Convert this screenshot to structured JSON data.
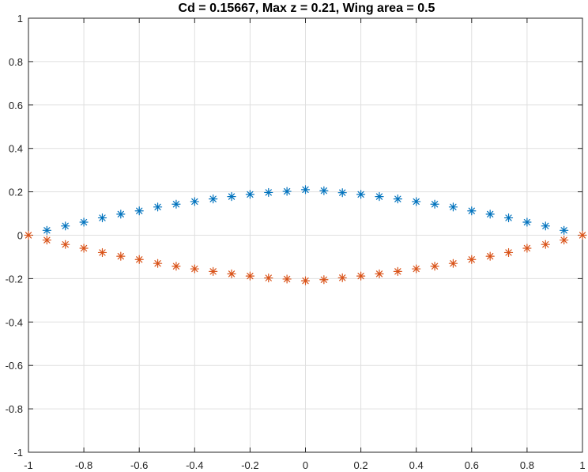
{
  "chart_data": {
    "type": "scatter",
    "title": "Cd = 0.15667, Max z = 0.21, Wing area = 0.5",
    "xlabel": "",
    "ylabel": "",
    "xlim": [
      -1,
      1
    ],
    "ylim": [
      -1,
      1
    ],
    "xticks": [
      "-1",
      "-0.8",
      "-0.6",
      "-0.4",
      "-0.2",
      "0",
      "0.2",
      "0.4",
      "0.6",
      "0.8",
      "1"
    ],
    "yticks": [
      "1",
      "0.8",
      "0.6",
      "0.4",
      "0.2",
      "0",
      "-0.2",
      "-0.4",
      "-0.6",
      "-0.8",
      "-1"
    ],
    "grid": true,
    "marker": "asterisk",
    "series": [
      {
        "color": "#0072BD",
        "points": [
          [
            -0.9333,
            0.0225
          ],
          [
            -0.8667,
            0.0425
          ],
          [
            -0.8,
            0.06
          ],
          [
            -0.7333,
            0.08
          ],
          [
            -0.6667,
            0.097
          ],
          [
            -0.6,
            0.112
          ],
          [
            -0.5333,
            0.13
          ],
          [
            -0.4667,
            0.143
          ],
          [
            -0.4,
            0.155
          ],
          [
            -0.3333,
            0.167
          ],
          [
            -0.2667,
            0.178
          ],
          [
            -0.2,
            0.188
          ],
          [
            -0.1333,
            0.197
          ],
          [
            -0.0667,
            0.202
          ],
          [
            0.0,
            0.21
          ],
          [
            0.0667,
            0.205
          ],
          [
            0.1333,
            0.196
          ],
          [
            0.2,
            0.188
          ],
          [
            0.2667,
            0.178
          ],
          [
            0.3333,
            0.167
          ],
          [
            0.4,
            0.155
          ],
          [
            0.4667,
            0.143
          ],
          [
            0.5333,
            0.13
          ],
          [
            0.6,
            0.112
          ],
          [
            0.6667,
            0.097
          ],
          [
            0.7333,
            0.08
          ],
          [
            0.8,
            0.06
          ],
          [
            0.8667,
            0.0425
          ],
          [
            0.9333,
            0.0225
          ]
        ]
      },
      {
        "color": "#D95319",
        "points": [
          [
            -1.0,
            0.0
          ],
          [
            -0.9333,
            -0.0225
          ],
          [
            -0.8667,
            -0.0425
          ],
          [
            -0.8,
            -0.06
          ],
          [
            -0.7333,
            -0.08
          ],
          [
            -0.6667,
            -0.097
          ],
          [
            -0.6,
            -0.112
          ],
          [
            -0.5333,
            -0.13
          ],
          [
            -0.4667,
            -0.143
          ],
          [
            -0.4,
            -0.155
          ],
          [
            -0.3333,
            -0.167
          ],
          [
            -0.2667,
            -0.178
          ],
          [
            -0.2,
            -0.188
          ],
          [
            -0.1333,
            -0.197
          ],
          [
            -0.0667,
            -0.202
          ],
          [
            0.0,
            -0.21
          ],
          [
            0.0667,
            -0.205
          ],
          [
            0.1333,
            -0.196
          ],
          [
            0.2,
            -0.188
          ],
          [
            0.2667,
            -0.178
          ],
          [
            0.3333,
            -0.167
          ],
          [
            0.4,
            -0.155
          ],
          [
            0.4667,
            -0.143
          ],
          [
            0.5333,
            -0.13
          ],
          [
            0.6,
            -0.112
          ],
          [
            0.6667,
            -0.097
          ],
          [
            0.7333,
            -0.08
          ],
          [
            0.8,
            -0.06
          ],
          [
            0.8667,
            -0.0425
          ],
          [
            0.9333,
            -0.0225
          ],
          [
            1.0,
            0.0
          ]
        ]
      }
    ]
  }
}
